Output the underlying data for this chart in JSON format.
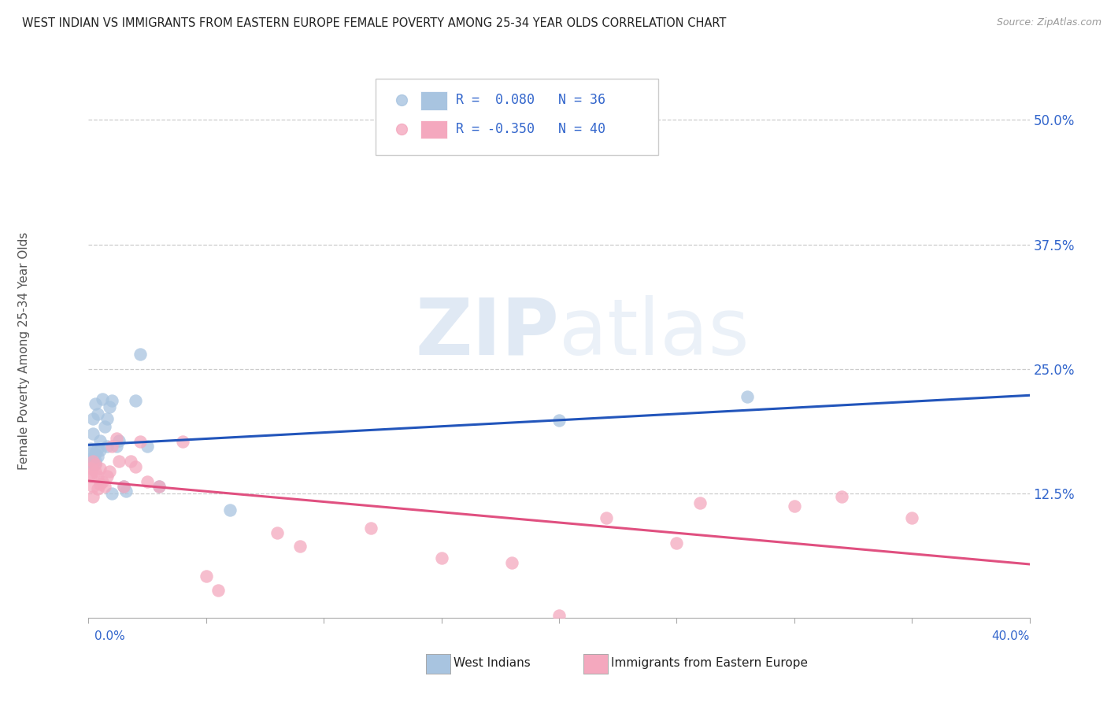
{
  "title": "WEST INDIAN VS IMMIGRANTS FROM EASTERN EUROPE FEMALE POVERTY AMONG 25-34 YEAR OLDS CORRELATION CHART",
  "source": "Source: ZipAtlas.com",
  "ylabel": "Female Poverty Among 25-34 Year Olds",
  "right_yticks": [
    "50.0%",
    "37.5%",
    "25.0%",
    "12.5%"
  ],
  "right_ytick_vals": [
    0.5,
    0.375,
    0.25,
    0.125
  ],
  "legend_blue_label": "West Indians",
  "legend_pink_label": "Immigrants from Eastern Europe",
  "R_blue": 0.08,
  "N_blue": 36,
  "R_pink": -0.35,
  "N_pink": 40,
  "blue_color": "#A8C4E0",
  "pink_color": "#F4A8BE",
  "blue_line_color": "#2255BB",
  "pink_line_color": "#E05080",
  "title_fontsize": 10.5,
  "source_fontsize": 9,
  "axis_label_color": "#3366CC",
  "xlim": [
    0.0,
    0.4
  ],
  "ylim": [
    0.0,
    0.55
  ],
  "blue_x": [
    0.001,
    0.001,
    0.001,
    0.002,
    0.002,
    0.002,
    0.002,
    0.003,
    0.003,
    0.003,
    0.004,
    0.004,
    0.005,
    0.005,
    0.006,
    0.007,
    0.008,
    0.009,
    0.01,
    0.012,
    0.013,
    0.015,
    0.016,
    0.02,
    0.022,
    0.025,
    0.03,
    0.06,
    0.2,
    0.28,
    0.001,
    0.002,
    0.003,
    0.004,
    0.008,
    0.01
  ],
  "blue_y": [
    0.16,
    0.165,
    0.17,
    0.155,
    0.16,
    0.185,
    0.2,
    0.155,
    0.165,
    0.215,
    0.17,
    0.205,
    0.168,
    0.178,
    0.22,
    0.192,
    0.172,
    0.212,
    0.218,
    0.172,
    0.178,
    0.132,
    0.127,
    0.218,
    0.265,
    0.172,
    0.132,
    0.108,
    0.198,
    0.222,
    0.155,
    0.16,
    0.158,
    0.162,
    0.2,
    0.125
  ],
  "pink_x": [
    0.001,
    0.001,
    0.002,
    0.002,
    0.002,
    0.003,
    0.003,
    0.004,
    0.004,
    0.005,
    0.005,
    0.006,
    0.007,
    0.008,
    0.009,
    0.01,
    0.012,
    0.013,
    0.015,
    0.018,
    0.02,
    0.022,
    0.025,
    0.03,
    0.04,
    0.05,
    0.055,
    0.08,
    0.09,
    0.12,
    0.15,
    0.18,
    0.2,
    0.22,
    0.25,
    0.3,
    0.32,
    0.001,
    0.26,
    0.35
  ],
  "pink_y": [
    0.142,
    0.15,
    0.122,
    0.132,
    0.157,
    0.147,
    0.154,
    0.13,
    0.142,
    0.134,
    0.15,
    0.137,
    0.132,
    0.142,
    0.147,
    0.172,
    0.18,
    0.157,
    0.132,
    0.157,
    0.152,
    0.177,
    0.137,
    0.132,
    0.177,
    0.042,
    0.028,
    0.085,
    0.072,
    0.09,
    0.06,
    0.055,
    0.002,
    0.1,
    0.075,
    0.112,
    0.122,
    0.145,
    0.115,
    0.1
  ]
}
